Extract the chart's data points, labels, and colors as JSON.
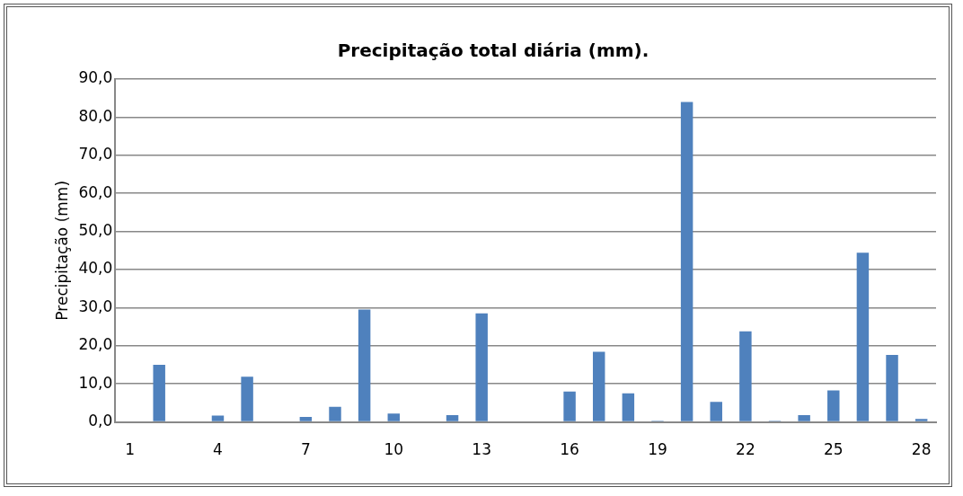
{
  "chart_data": {
    "type": "bar",
    "title": "Precipitação total diária (mm).",
    "ylabel": "Precipitação (mm)",
    "categories": [
      "1",
      null,
      null,
      "4",
      null,
      null,
      "7",
      null,
      null,
      "10",
      null,
      null,
      "13",
      null,
      null,
      "16",
      null,
      null,
      "19",
      null,
      null,
      "22",
      null,
      null,
      "25",
      null,
      null,
      "28"
    ],
    "values": [
      0,
      15.0,
      0,
      1.7,
      11.9,
      0,
      1.3,
      4.0,
      29.5,
      2.2,
      0,
      1.8,
      28.5,
      0,
      0,
      8.0,
      18.4,
      7.5,
      0.3,
      84.0,
      5.3,
      23.8,
      0.3,
      1.8,
      8.3,
      44.4,
      17.6,
      0.8
    ],
    "color": "#4f81bd",
    "ylim": [
      0,
      90
    ],
    "yticks": [
      {
        "value": 0,
        "label": "0,0"
      },
      {
        "value": 10,
        "label": "10,0"
      },
      {
        "value": 20,
        "label": "20,0"
      },
      {
        "value": 30,
        "label": "30,0"
      },
      {
        "value": 40,
        "label": "40,0"
      },
      {
        "value": 50,
        "label": "50,0"
      },
      {
        "value": 60,
        "label": "60,0"
      },
      {
        "value": 70,
        "label": "70,0"
      },
      {
        "value": 80,
        "label": "80,0"
      },
      {
        "value": 90,
        "label": "90,0"
      }
    ],
    "grid": "y",
    "legend": false
  }
}
